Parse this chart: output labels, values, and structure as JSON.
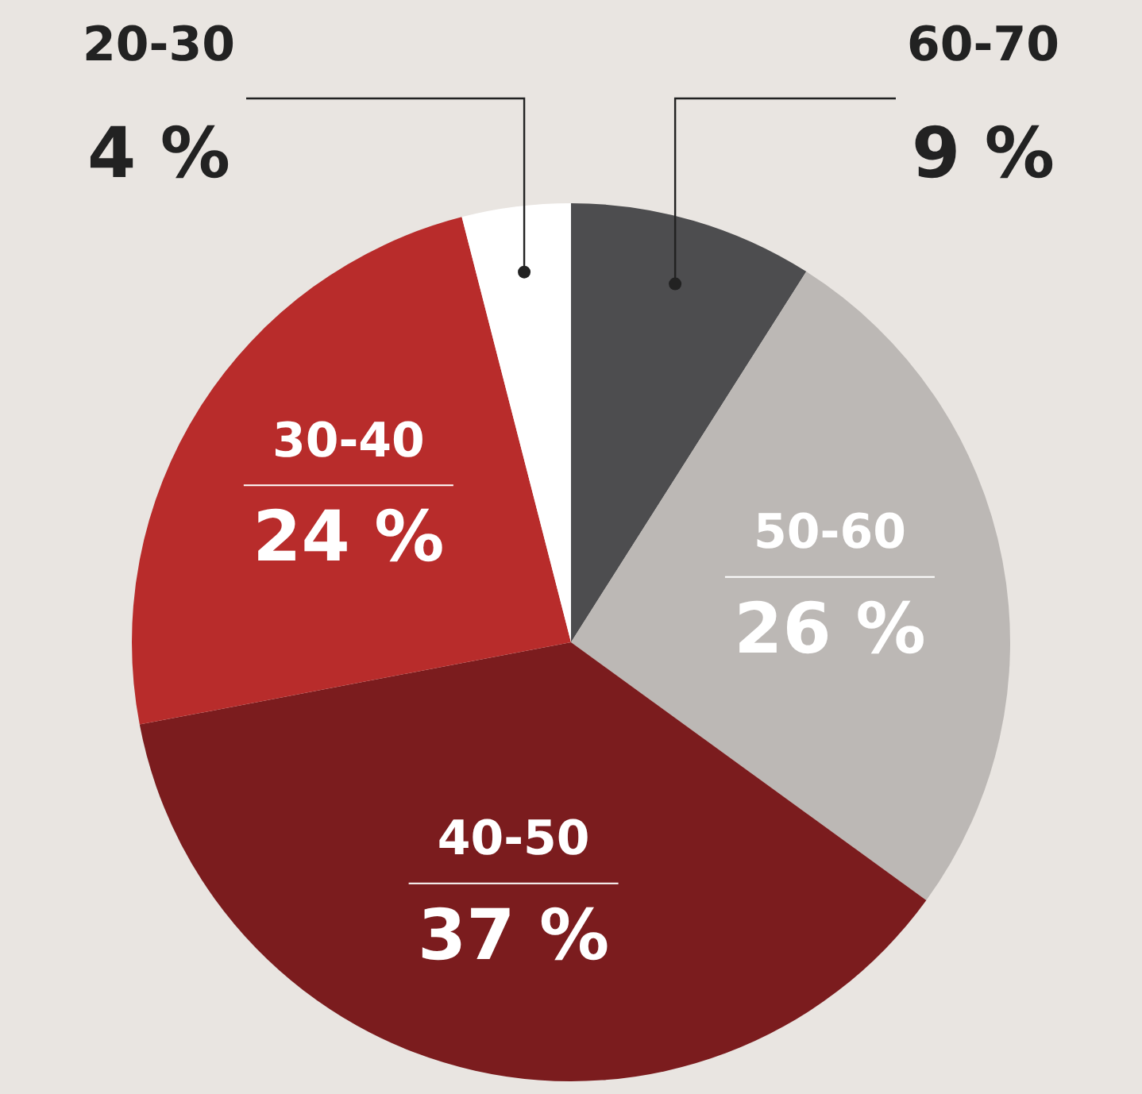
{
  "chart_data": {
    "type": "pie",
    "categories": [
      "60-70",
      "50-60",
      "40-50",
      "30-40",
      "20-30"
    ],
    "values": [
      9,
      26,
      37,
      24,
      4
    ],
    "value_labels": [
      "9 %",
      "26 %",
      "37 %",
      "24 %",
      "4 %"
    ],
    "colors": [
      "#4d4d4f",
      "#bcb8b5",
      "#7b1c1e",
      "#b82c2b",
      "#ffffff"
    ],
    "legend": false
  }
}
